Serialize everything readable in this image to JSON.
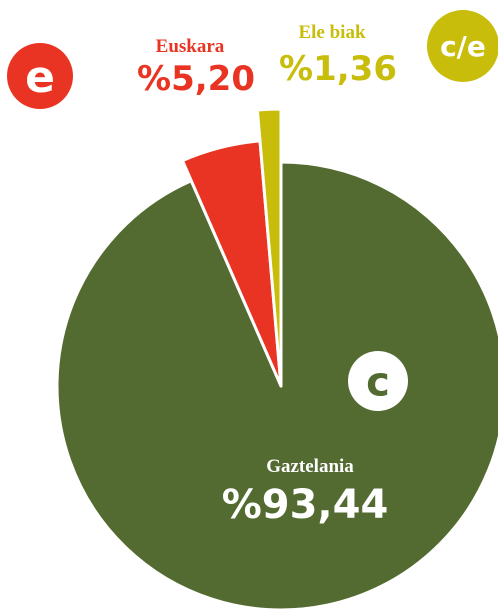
{
  "chart_data": {
    "type": "pie",
    "categories": [
      "Gaztelania",
      "Euskara",
      "Ele biak"
    ],
    "values": [
      93.44,
      5.2,
      1.36
    ],
    "value_labels": [
      "%93,44",
      "%5,20",
      "%1,36"
    ],
    "icon_labels": [
      "c",
      "e",
      "c/e"
    ],
    "colors": [
      "#536b30",
      "#e93423",
      "#c9bd0b"
    ]
  }
}
